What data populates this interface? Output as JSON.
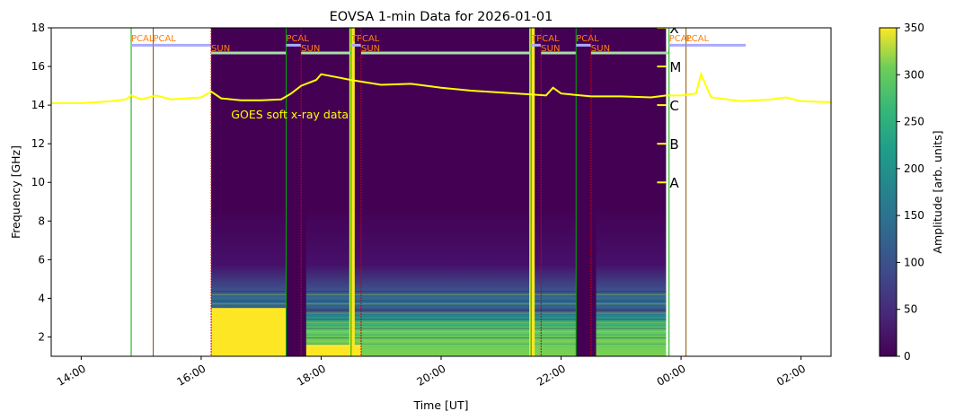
{
  "chart_data": {
    "type": "heatmap",
    "title": "EOVSA 1-min Data for 2026-01-01",
    "xlabel": "Time [UT]",
    "ylabel": "Frequency [GHz]",
    "ylim": [
      1.0,
      18.0
    ],
    "xlim": [
      "13:30",
      "02:30"
    ],
    "x_ticks": [
      "14:00",
      "16:00",
      "18:00",
      "20:00",
      "22:00",
      "00:00",
      "02:00"
    ],
    "y_ticks": [
      "2",
      "4",
      "6",
      "8",
      "10",
      "12",
      "14",
      "16",
      "18"
    ],
    "colorbar": {
      "label": "Amplitude [arb. units]",
      "range": [
        0,
        350
      ],
      "ticks": [
        "0",
        "50",
        "100",
        "150",
        "200",
        "250",
        "300",
        "350"
      ],
      "colormap": "viridis"
    },
    "data_span": [
      "16:10",
      "23:45"
    ],
    "data_gaps": [
      [
        "17:25",
        "17:45"
      ],
      [
        "22:15",
        "22:35"
      ]
    ],
    "bright_spikes": [
      "18:30",
      "21:30"
    ],
    "goes_label": "GOES soft x-ray data",
    "goes_curve_color": "#ffff00",
    "goes_classes": [
      "X",
      "M",
      "C",
      "B",
      "A"
    ],
    "goes_class_freq": [
      18.0,
      16.0,
      14.0,
      12.0,
      10.0
    ],
    "goes_curve": [
      [
        "13:30",
        14.1
      ],
      [
        "14:00",
        14.1
      ],
      [
        "14:30",
        14.2
      ],
      [
        "14:45",
        14.3
      ],
      [
        "14:50",
        14.5
      ],
      [
        "15:00",
        14.3
      ],
      [
        "15:15",
        14.5
      ],
      [
        "15:30",
        14.3
      ],
      [
        "16:00",
        14.4
      ],
      [
        "16:10",
        14.7
      ],
      [
        "16:20",
        14.35
      ],
      [
        "16:40",
        14.25
      ],
      [
        "17:00",
        14.25
      ],
      [
        "17:20",
        14.3
      ],
      [
        "17:30",
        14.6
      ],
      [
        "17:40",
        15.0
      ],
      [
        "17:55",
        15.3
      ],
      [
        "18:00",
        15.6
      ],
      [
        "18:30",
        15.3
      ],
      [
        "19:00",
        15.05
      ],
      [
        "19:30",
        15.1
      ],
      [
        "20:00",
        14.9
      ],
      [
        "20:30",
        14.75
      ],
      [
        "21:00",
        14.65
      ],
      [
        "21:30",
        14.55
      ],
      [
        "21:45",
        14.5
      ],
      [
        "21:52",
        14.9
      ],
      [
        "22:00",
        14.6
      ],
      [
        "22:30",
        14.45
      ],
      [
        "23:00",
        14.45
      ],
      [
        "23:30",
        14.4
      ],
      [
        "23:45",
        14.5
      ],
      [
        "00:00",
        14.5
      ],
      [
        "00:15",
        14.6
      ],
      [
        "00:20",
        15.6
      ],
      [
        "00:30",
        14.4
      ],
      [
        "01:00",
        14.2
      ],
      [
        "01:30",
        14.3
      ],
      [
        "01:45",
        14.4
      ],
      [
        "02:00",
        14.2
      ],
      [
        "02:30",
        14.15
      ]
    ],
    "event_markers": [
      {
        "label": "PCAL",
        "time": "14:50",
        "bar_color": "#aaaaff",
        "line_color": "#00aa00"
      },
      {
        "label": "PCAL",
        "time": "15:12",
        "bar_color": "#aaaaff",
        "line_color": "#885500"
      },
      {
        "label": "SUN",
        "time": "16:10",
        "bar_color": "#aaddaa",
        "line_color": "#cc0000"
      },
      {
        "label": "PCAL",
        "time": "17:25",
        "bar_color": "#aaaaff",
        "line_color": "#00aa00"
      },
      {
        "label": "SUN",
        "time": "17:40",
        "bar_color": "#aaddaa",
        "line_color": "#cc0000"
      },
      {
        "label": "TPCAL",
        "time": "18:30",
        "bar_color": "#aaaaff",
        "line_color": "#00aa00"
      },
      {
        "label": "SUN",
        "time": "18:40",
        "bar_color": "#aaddaa",
        "line_color": "#cc0000"
      },
      {
        "label": "TPCAL",
        "time": "21:30",
        "bar_color": "#aaaaff",
        "line_color": "#00aa00"
      },
      {
        "label": "SUN",
        "time": "21:40",
        "bar_color": "#aaddaa",
        "line_color": "#cc0000"
      },
      {
        "label": "PCAL",
        "time": "22:15",
        "bar_color": "#aaaaff",
        "line_color": "#00aa00"
      },
      {
        "label": "SUN",
        "time": "22:30",
        "bar_color": "#aaddaa",
        "line_color": "#cc0000"
      },
      {
        "label": "PCAL",
        "time": "23:48",
        "bar_color": "#aaaaff",
        "line_color": "#00aa00"
      },
      {
        "label": "PCAL",
        "time": "00:05",
        "bar_color": "#aaaaff",
        "line_color": "#885500"
      }
    ]
  }
}
